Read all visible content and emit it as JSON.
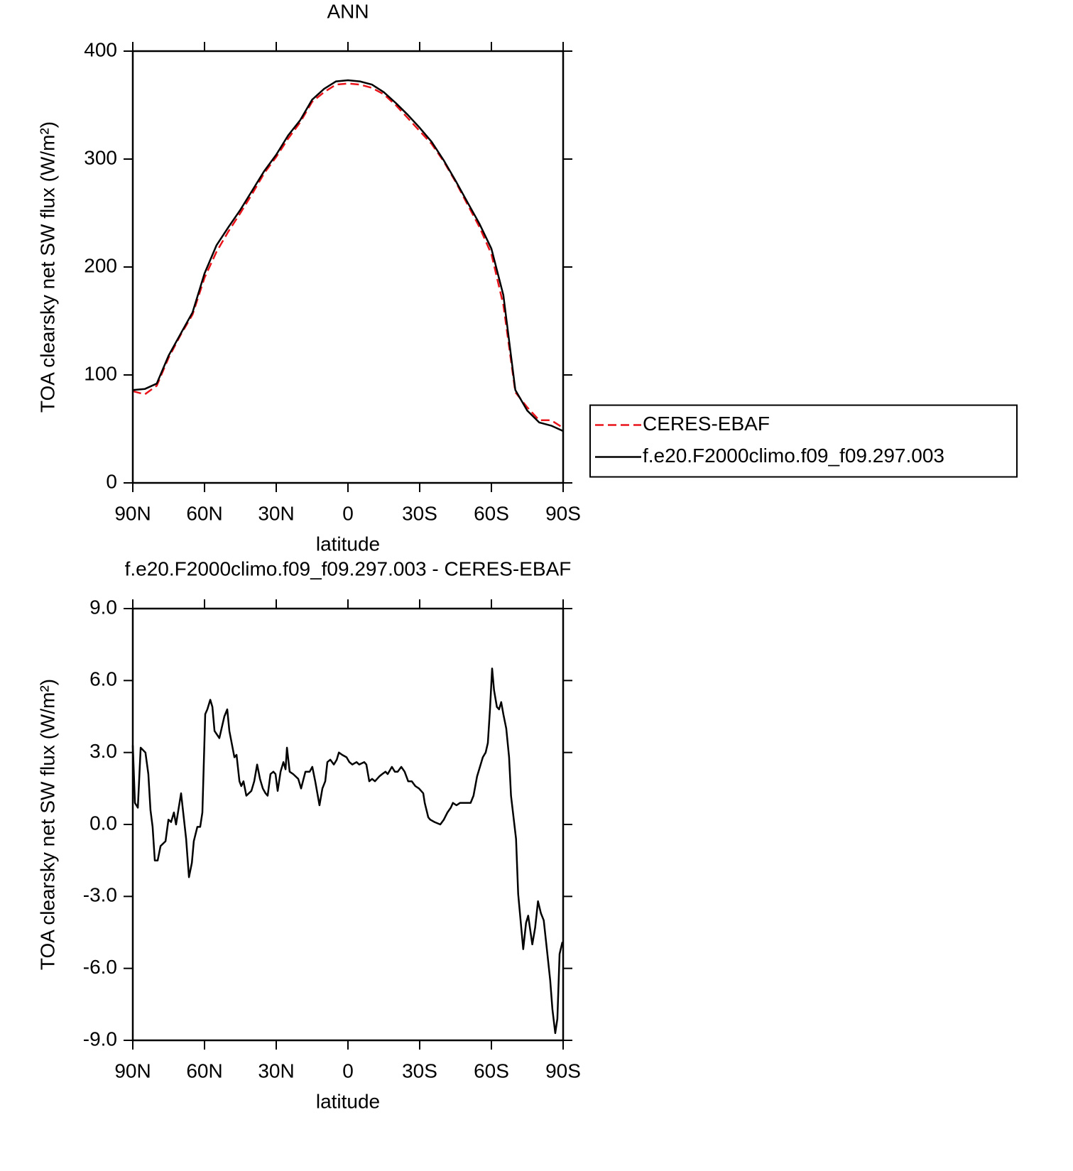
{
  "chart_data": [
    {
      "type": "line",
      "title": "ANN",
      "x_label": "latitude",
      "y_label": "TOA clearsky net SW flux (W/m²)",
      "xlim": [
        90,
        -90
      ],
      "xticks": [
        {
          "value": 90,
          "label": "90N"
        },
        {
          "value": 60,
          "label": "60N"
        },
        {
          "value": 30,
          "label": "30N"
        },
        0,
        {
          "value": -30,
          "label": "30S"
        },
        {
          "value": -60,
          "label": "60S"
        },
        {
          "value": -90,
          "label": "90S"
        }
      ],
      "ylim": [
        0,
        400
      ],
      "yticks": [
        0,
        100,
        200,
        300,
        400
      ],
      "legend": "right",
      "x": [
        90,
        85,
        80,
        75,
        70,
        65,
        60,
        55,
        50,
        45,
        40,
        35,
        30,
        25,
        20,
        15,
        10,
        5,
        0,
        -5,
        -10,
        -15,
        -20,
        -25,
        -30,
        -35,
        -40,
        -45,
        -50,
        -55,
        -60,
        -65,
        -70,
        -75,
        -80,
        -85,
        -90
      ],
      "series": [
        {
          "name": "CERES-EBAF",
          "color": "#e8141a",
          "dash": true,
          "values": [
            85,
            82,
            90,
            116,
            137,
            156,
            190,
            214,
            233,
            250,
            268,
            287,
            302,
            319,
            334,
            353,
            362,
            369,
            370,
            369,
            366,
            360,
            350,
            338,
            326,
            314,
            298,
            279,
            258,
            237,
            212,
            165,
            84,
            70,
            58,
            58,
            51
          ]
        },
        {
          "name": "f.e20.F2000climo.f09_f09.297.003",
          "color": "#000000",
          "dash": false,
          "values": [
            86,
            87,
            92,
            118,
            138,
            158,
            194,
            220,
            237,
            253,
            271,
            289,
            304,
            322,
            336,
            355,
            365,
            372,
            373,
            372,
            369,
            362,
            352,
            341,
            329,
            316,
            299,
            280,
            260,
            240,
            217,
            174,
            86,
            67,
            56,
            53,
            48
          ]
        }
      ]
    },
    {
      "type": "line",
      "title": "f.e20.F2000climo.f09_f09.297.003 - CERES-EBAF",
      "x_label": "latitude",
      "y_label": "TOA clearsky net SW flux (W/m²)",
      "xlim": [
        90,
        -90
      ],
      "xticks": [
        {
          "value": 90,
          "label": "90N"
        },
        {
          "value": 60,
          "label": "60N"
        },
        {
          "value": 30,
          "label": "30N"
        },
        0,
        {
          "value": -30,
          "label": "30S"
        },
        {
          "value": -60,
          "label": "60S"
        },
        {
          "value": -90,
          "label": "90S"
        }
      ],
      "ylim": [
        -9,
        9
      ],
      "yticks": [
        {
          "value": -9,
          "label": "-9.0"
        },
        {
          "value": -6,
          "label": "-6.0"
        },
        {
          "value": -3,
          "label": "-3.0"
        },
        {
          "value": 0,
          "label": "0.0"
        },
        {
          "value": 3,
          "label": "3.0"
        },
        {
          "value": 6,
          "label": "6.0"
        },
        {
          "value": 9,
          "label": "9.0"
        }
      ],
      "color": "#000000",
      "x": [
        90.0,
        89.1,
        87.9,
        86.7,
        84.7,
        83.5,
        82.6,
        81.7,
        80.8,
        79.6,
        78.4,
        76.3,
        75.1,
        74.0,
        72.8,
        71.9,
        69.8,
        67.7,
        66.5,
        65.3,
        64.5,
        63.0,
        61.8,
        60.9,
        59.7,
        58.8,
        57.6,
        56.7,
        55.8,
        53.8,
        51.7,
        50.5,
        49.6,
        47.5,
        46.6,
        45.4,
        44.6,
        43.7,
        42.5,
        40.4,
        39.2,
        38.0,
        36.8,
        35.6,
        34.5,
        33.6,
        32.4,
        31.2,
        30.3,
        29.4,
        28.2,
        27.0,
        26.1,
        25.5,
        24.4,
        22.9,
        20.8,
        19.6,
        17.8,
        16.0,
        14.9,
        13.7,
        11.9,
        10.7,
        9.5,
        8.6,
        7.4,
        5.9,
        4.7,
        3.8,
        2.4,
        0.6,
        -0.6,
        -1.8,
        -3.6,
        -4.7,
        -6.8,
        -7.7,
        -8.9,
        -10.1,
        -11.3,
        -13.1,
        -14.3,
        -15.7,
        -16.6,
        -18.4,
        -19.6,
        -20.8,
        -22.3,
        -23.7,
        -25.2,
        -26.7,
        -28.2,
        -29.7,
        -31.5,
        -32.1,
        -33.6,
        -34.4,
        -36.2,
        -38.6,
        -40.1,
        -41.6,
        -43.0,
        -43.9,
        -45.4,
        -46.9,
        -49.0,
        -51.3,
        -52.5,
        -54.0,
        -56.4,
        -57.6,
        -58.5,
        -59.4,
        -60.3,
        -61.1,
        -62.3,
        -63.2,
        -64.1,
        -65.0,
        -66.2,
        -67.4,
        -68.2,
        -70.3,
        -71.2,
        -73.3,
        -74.5,
        -75.4,
        -77.1,
        -78.3,
        -79.5,
        -80.7,
        -81.9,
        -83.2,
        -84.6,
        -85.5,
        -86.7,
        -87.6,
        -88.5,
        -89.7
      ],
      "values": [
        3.3,
        0.9,
        0.7,
        3.2,
        3.0,
        2.1,
        0.6,
        -0.1,
        -1.5,
        -1.5,
        -0.9,
        -0.7,
        0.2,
        0.1,
        0.5,
        0.0,
        1.3,
        -0.6,
        -2.2,
        -1.6,
        -0.7,
        -0.1,
        -0.1,
        0.5,
        4.6,
        4.8,
        5.2,
        4.9,
        3.9,
        3.6,
        4.5,
        4.8,
        3.9,
        2.8,
        2.9,
        1.8,
        1.6,
        1.8,
        1.2,
        1.4,
        1.8,
        2.5,
        1.9,
        1.5,
        1.3,
        1.2,
        2.1,
        2.2,
        2.1,
        1.4,
        2.2,
        2.6,
        2.3,
        3.2,
        2.2,
        2.1,
        1.9,
        1.5,
        2.2,
        2.2,
        2.4,
        1.8,
        0.8,
        1.5,
        1.8,
        2.6,
        2.7,
        2.5,
        2.7,
        3.0,
        2.9,
        2.8,
        2.6,
        2.5,
        2.6,
        2.5,
        2.6,
        2.5,
        1.8,
        1.9,
        1.8,
        2.0,
        2.1,
        2.2,
        2.1,
        2.4,
        2.2,
        2.2,
        2.4,
        2.2,
        1.8,
        1.8,
        1.6,
        1.5,
        1.3,
        0.9,
        0.3,
        0.2,
        0.1,
        0.0,
        0.2,
        0.5,
        0.7,
        0.9,
        0.8,
        0.9,
        0.9,
        0.9,
        1.2,
        2.0,
        2.8,
        3.0,
        3.4,
        4.8,
        6.5,
        5.6,
        4.9,
        4.8,
        5.1,
        4.6,
        4.0,
        2.8,
        1.2,
        -0.6,
        -2.9,
        -5.2,
        -4.1,
        -3.8,
        -5.0,
        -4.3,
        -3.2,
        -3.7,
        -4.0,
        -5.2,
        -6.5,
        -7.7,
        -8.7,
        -8.1,
        -5.4,
        -4.9
      ]
    }
  ]
}
